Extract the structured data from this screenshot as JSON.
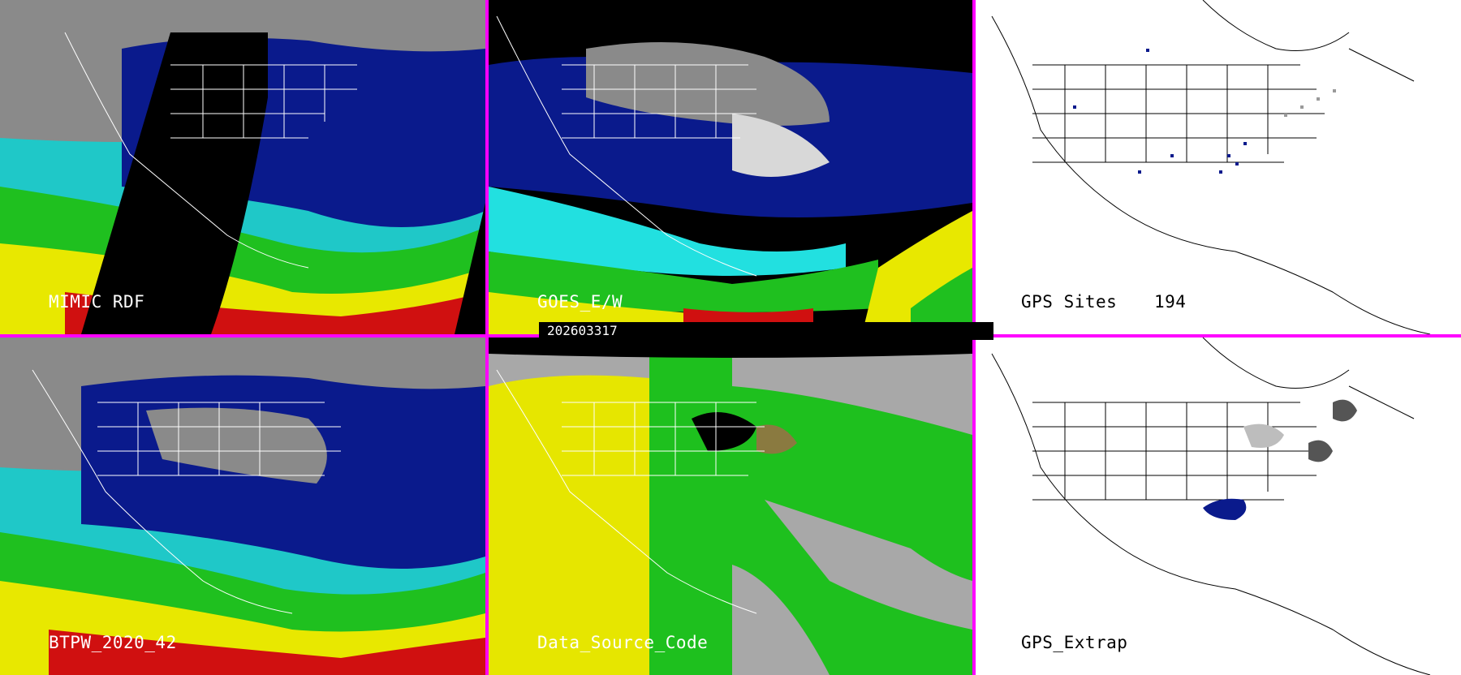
{
  "timestamp": "202603317",
  "panels": [
    {
      "id": "mimic-rdf",
      "label": "MIMIC RDF",
      "theme": "moisture"
    },
    {
      "id": "goes-ew",
      "label": "GOES_E/W",
      "theme": "moisture"
    },
    {
      "id": "gps-sites",
      "label": "GPS Sites",
      "count": "194",
      "theme": "gps"
    },
    {
      "id": "btpw",
      "label": "BTPW_2020_42",
      "theme": "moisture"
    },
    {
      "id": "data-source-code",
      "label": "Data_Source_Code",
      "theme": "source"
    },
    {
      "id": "gps-extrap",
      "label": "GPS_Extrap",
      "theme": "gps"
    }
  ],
  "colors": {
    "separator": "#ff00ff",
    "moisture_low": "#0a1a8c",
    "moisture_mid_cyan": "#22e0e0",
    "moisture_green": "#1fc01f",
    "moisture_yellow": "#e8e800",
    "moisture_red": "#d01010",
    "dry_gray": "#9a9a9a",
    "source_yellow": "#e6e600",
    "source_green": "#1ec01e",
    "source_gray": "#a8a8a8"
  }
}
